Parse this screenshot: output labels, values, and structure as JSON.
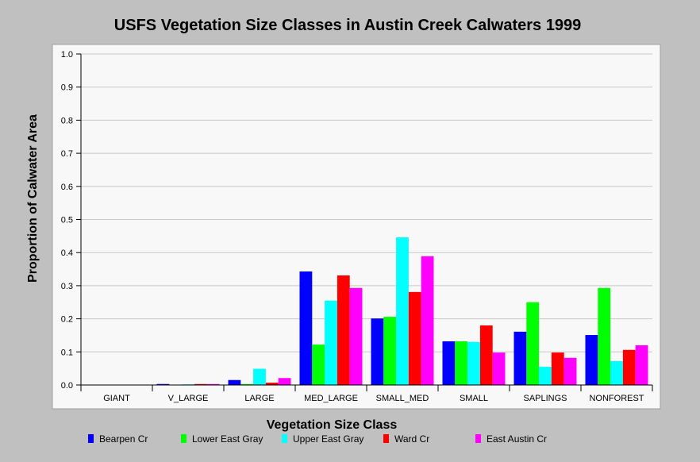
{
  "chart_data": {
    "type": "bar",
    "title": "USFS Vegetation Size Classes in Austin Creek Calwaters 1999",
    "xlabel": "Vegetation Size Class",
    "ylabel": "Proportion of Calwater Area",
    "ylim": [
      0,
      1
    ],
    "yticks": [
      "0.0",
      "0.1",
      "0.2",
      "0.3",
      "0.4",
      "0.5",
      "0.6",
      "0.7",
      "0.8",
      "0.9",
      "1.0"
    ],
    "grid": true,
    "legend_position": "bottom",
    "categories": [
      "GIANT",
      "V_LARGE",
      "LARGE",
      "MED_LARGE",
      "SMALL_MED",
      "SMALL",
      "SAPLINGS",
      "NONFOREST"
    ],
    "series": [
      {
        "name": "Bearpen Cr",
        "color": "#0000ff",
        "values": [
          0,
          0.003,
          0.015,
          0.343,
          0.201,
          0.132,
          0.161,
          0.151
        ]
      },
      {
        "name": "Lower East Gray",
        "color": "#00ff00",
        "values": [
          0,
          0.001,
          0.003,
          0.122,
          0.206,
          0.132,
          0.25,
          0.293
        ]
      },
      {
        "name": "Upper East Gray",
        "color": "#00ffff",
        "values": [
          0,
          0.002,
          0.049,
          0.255,
          0.446,
          0.13,
          0.055,
          0.072
        ]
      },
      {
        "name": "Ward Cr",
        "color": "#ff0000",
        "values": [
          0,
          0.003,
          0.007,
          0.331,
          0.281,
          0.18,
          0.098,
          0.106
        ]
      },
      {
        "name": "East Austin Cr",
        "color": "#ff00ff",
        "values": [
          0,
          0.003,
          0.021,
          0.293,
          0.389,
          0.098,
          0.082,
          0.12
        ]
      }
    ]
  }
}
